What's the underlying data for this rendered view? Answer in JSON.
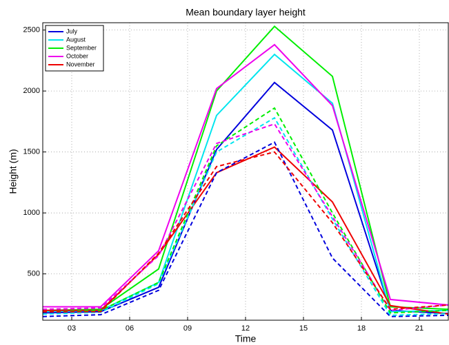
{
  "chart_data": {
    "type": "line",
    "title": "Mean boundary layer height",
    "xlabel": "Time",
    "ylabel": "Height (m)",
    "x": [
      1.5,
      4.5,
      7.5,
      10.5,
      13.5,
      16.5,
      19.5,
      22.5
    ],
    "xlim": [
      1.5,
      22.5
    ],
    "xticks": [
      {
        "value": 3,
        "label": "03"
      },
      {
        "value": 6,
        "label": "06"
      },
      {
        "value": 9,
        "label": "09"
      },
      {
        "value": 12,
        "label": "12"
      },
      {
        "value": 15,
        "label": "15"
      },
      {
        "value": 18,
        "label": "18"
      },
      {
        "value": 21,
        "label": "21"
      }
    ],
    "ylim": [
      120,
      2560
    ],
    "yticks": [
      500,
      1000,
      1500,
      2000,
      2500
    ],
    "grid": true,
    "legend": "upper-left",
    "series": [
      {
        "name": "July",
        "color": "#0000dd",
        "style": "solid",
        "values": [
          180,
          190,
          390,
          1520,
          2070,
          1680,
          200,
          175
        ]
      },
      {
        "name": "August",
        "color": "#00e5ee",
        "style": "solid",
        "values": [
          190,
          200,
          430,
          1800,
          2300,
          1900,
          190,
          200
        ]
      },
      {
        "name": "September",
        "color": "#00ee00",
        "style": "solid",
        "values": [
          200,
          210,
          540,
          2000,
          2530,
          2120,
          230,
          210
        ]
      },
      {
        "name": "October",
        "color": "#ee00ee",
        "style": "solid",
        "values": [
          230,
          230,
          690,
          2020,
          2380,
          1880,
          290,
          245
        ]
      },
      {
        "name": "November",
        "color": "#ee0000",
        "style": "solid",
        "values": [
          200,
          200,
          660,
          1330,
          1540,
          1090,
          240,
          170
        ]
      },
      {
        "color": "#0000dd",
        "style": "dashed",
        "values": [
          150,
          165,
          365,
          1330,
          1580,
          630,
          150,
          160
        ]
      },
      {
        "color": "#00e5ee",
        "style": "dashed",
        "values": [
          170,
          185,
          420,
          1500,
          1780,
          950,
          160,
          175
        ]
      },
      {
        "color": "#00ee00",
        "style": "dashed",
        "values": [
          190,
          200,
          430,
          1550,
          1860,
          1000,
          180,
          200
        ]
      },
      {
        "color": "#ee00ee",
        "style": "dashed",
        "values": [
          210,
          220,
          650,
          1570,
          1730,
          970,
          200,
          245
        ]
      },
      {
        "color": "#ee0000",
        "style": "dashed",
        "values": [
          190,
          190,
          670,
          1380,
          1500,
          920,
          210,
          245
        ]
      }
    ]
  }
}
